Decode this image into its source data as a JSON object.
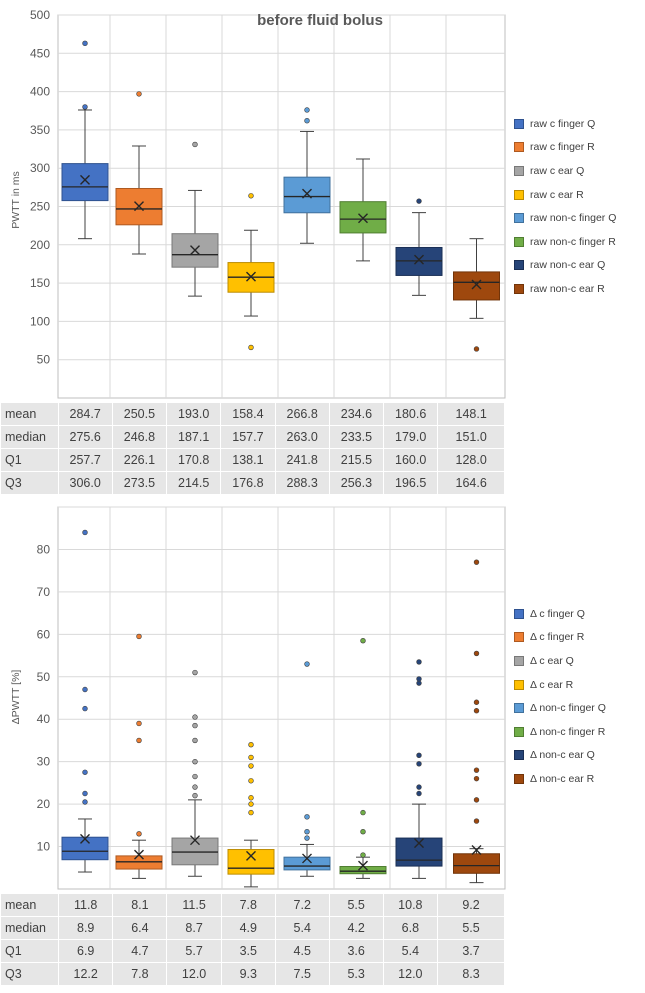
{
  "colors": {
    "series": [
      "#4472c4",
      "#ed7d31",
      "#a5a5a5",
      "#ffc000",
      "#5b9bd5",
      "#70ad47",
      "#264478",
      "#9e480e"
    ],
    "border": [
      "#2f528f",
      "#ae5a21",
      "#787878",
      "#bc8c00",
      "#41719c",
      "#507e32",
      "#1a2f55",
      "#713409"
    ],
    "grid": "#d9d9d9",
    "axis": "#bfbfbf"
  },
  "stat_labels": [
    "mean",
    "median",
    "Q1",
    "Q3"
  ],
  "chart_data": [
    {
      "type": "box",
      "title": "before fluid bolus",
      "ylabel": "PWTT in ms",
      "xlabel": "",
      "ylim": [
        0,
        500
      ],
      "ytick_step": 50,
      "yticks_shown": [
        "50",
        "100",
        "150",
        "200",
        "250",
        "300",
        "350",
        "400",
        "450",
        "500"
      ],
      "legend_position": "right",
      "categories": [
        "raw c finger Q",
        "raw c finger R",
        "raw c ear Q",
        "raw c ear R",
        "raw non-c finger Q",
        "raw non-c finger R",
        "raw non-c ear Q",
        "raw non-c ear R"
      ],
      "series": [
        {
          "name": "raw c finger Q",
          "mean": "284.7",
          "median": "275.6",
          "q1": "257.7",
          "q3": "306.0",
          "whisker_low": 208,
          "whisker_high": 376,
          "outliers": [
            380,
            463
          ]
        },
        {
          "name": "raw c finger R",
          "mean": "250.5",
          "median": "246.8",
          "q1": "226.1",
          "q3": "273.5",
          "whisker_low": 188,
          "whisker_high": 329,
          "outliers": [
            397
          ]
        },
        {
          "name": "raw c ear Q",
          "mean": "193.0",
          "median": "187.1",
          "q1": "170.8",
          "q3": "214.5",
          "whisker_low": 133,
          "whisker_high": 271,
          "outliers": [
            331
          ]
        },
        {
          "name": "raw c ear R",
          "mean": "158.4",
          "median": "157.7",
          "q1": "138.1",
          "q3": "176.8",
          "whisker_low": 107,
          "whisker_high": 219,
          "outliers": [
            66,
            264
          ]
        },
        {
          "name": "raw non-c finger Q",
          "mean": "266.8",
          "median": "263.0",
          "q1": "241.8",
          "q3": "288.3",
          "whisker_low": 202,
          "whisker_high": 348,
          "outliers": [
            362,
            376
          ]
        },
        {
          "name": "raw non-c finger R",
          "mean": "234.6",
          "median": "233.5",
          "q1": "215.5",
          "q3": "256.3",
          "whisker_low": 179,
          "whisker_high": 312,
          "outliers": []
        },
        {
          "name": "raw non-c ear Q",
          "mean": "180.6",
          "median": "179.0",
          "q1": "160.0",
          "q3": "196.5",
          "whisker_low": 134,
          "whisker_high": 242,
          "outliers": [
            257
          ]
        },
        {
          "name": "raw non-c ear R",
          "mean": "148.1",
          "median": "151.0",
          "q1": "128.0",
          "q3": "164.6",
          "whisker_low": 104,
          "whisker_high": 208,
          "outliers": [
            64
          ]
        }
      ]
    },
    {
      "type": "box",
      "title": "",
      "ylabel": "ΔPWTT [%]",
      "xlabel": "",
      "ylim": [
        0,
        90
      ],
      "ytick_step": 10,
      "yticks_shown": [
        "10",
        "20",
        "30",
        "40",
        "50",
        "60",
        "70",
        "80"
      ],
      "legend_position": "right",
      "categories": [
        "Δ c finger Q",
        "Δ c finger R",
        "Δ c ear Q",
        "Δ c ear R",
        "Δ non-c finger Q",
        "Δ non-c finger R",
        "Δ non-c ear Q",
        "Δ non-c ear R"
      ],
      "series": [
        {
          "name": "Δ c finger Q",
          "mean": "11.8",
          "median": "8.9",
          "q1": "6.9",
          "q3": "12.2",
          "whisker_low": 4.0,
          "whisker_high": 16.5,
          "outliers": [
            20.5,
            22.5,
            27.5,
            42.5,
            47.0,
            84.0
          ]
        },
        {
          "name": "Δ c finger R",
          "mean": "8.1",
          "median": "6.4",
          "q1": "4.7",
          "q3": "7.8",
          "whisker_low": 2.5,
          "whisker_high": 11.5,
          "outliers": [
            13.0,
            35.0,
            39.0,
            59.5
          ]
        },
        {
          "name": "Δ c ear Q",
          "mean": "11.5",
          "median": "8.7",
          "q1": "5.7",
          "q3": "12.0",
          "whisker_low": 3.0,
          "whisker_high": 21.0,
          "outliers": [
            22.0,
            24.0,
            26.5,
            30.0,
            35.0,
            38.5,
            40.5,
            51.0
          ]
        },
        {
          "name": "Δ c ear R",
          "mean": "7.8",
          "median": "4.9",
          "q1": "3.5",
          "q3": "9.3",
          "whisker_low": 0.5,
          "whisker_high": 11.5,
          "outliers": [
            18.0,
            20.0,
            21.5,
            25.5,
            29.0,
            31.0,
            34.0
          ]
        },
        {
          "name": "Δ non-c finger Q",
          "mean": "7.2",
          "median": "5.4",
          "q1": "4.5",
          "q3": "7.5",
          "whisker_low": 3.0,
          "whisker_high": 10.5,
          "outliers": [
            12.0,
            13.5,
            17.0,
            53.0
          ]
        },
        {
          "name": "Δ non-c finger R",
          "mean": "5.5",
          "median": "4.2",
          "q1": "3.6",
          "q3": "5.3",
          "whisker_low": 2.5,
          "whisker_high": 7.5,
          "outliers": [
            8.0,
            13.5,
            18.0,
            58.5
          ]
        },
        {
          "name": "Δ non-c ear Q",
          "mean": "10.8",
          "median": "6.8",
          "q1": "5.4",
          "q3": "12.0",
          "whisker_low": 2.5,
          "whisker_high": 20.0,
          "outliers": [
            22.5,
            24.0,
            29.5,
            31.5,
            48.5,
            49.5,
            53.5
          ]
        },
        {
          "name": "Δ non-c ear R",
          "mean": "9.2",
          "median": "5.5",
          "q1": "3.7",
          "q3": "8.3",
          "whisker_low": 1.5,
          "whisker_high": 9.5,
          "outliers": [
            16.0,
            21.0,
            26.0,
            28.0,
            42.0,
            44.0,
            55.5,
            77.0
          ]
        }
      ]
    }
  ]
}
